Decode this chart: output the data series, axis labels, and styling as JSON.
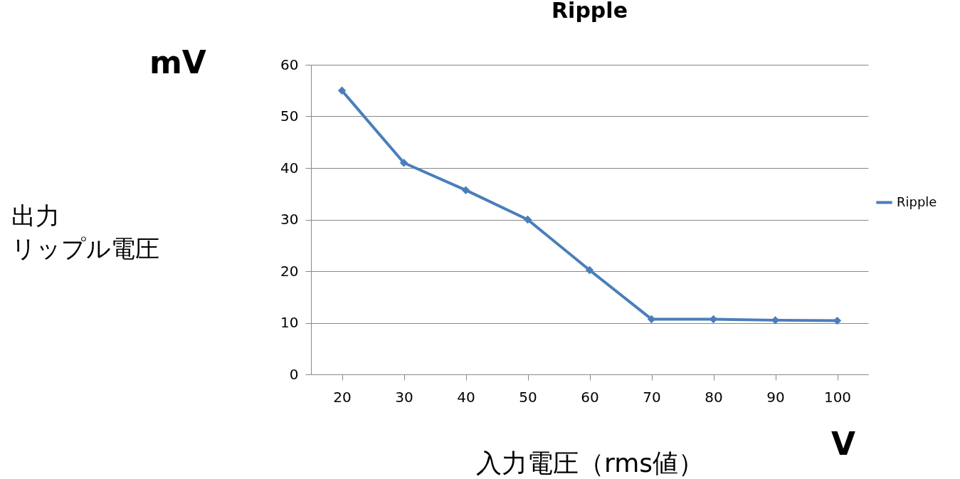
{
  "chart_data": {
    "type": "line",
    "title": "Ripple",
    "xlabel": "入力電圧（rms値）",
    "annotations": [
      "mV",
      "出力リップル電圧",
      "V"
    ],
    "categories": [
      "20",
      "30",
      "40",
      "50",
      "60",
      "70",
      "80",
      "90",
      "100"
    ],
    "series": [
      {
        "name": "Ripple",
        "color": "#4a7ebb",
        "values": [
          55,
          41,
          35.7,
          30,
          20.2,
          10.7,
          10.7,
          10.5,
          10.4
        ]
      }
    ],
    "ylim": [
      0,
      60
    ],
    "yticks": [
      0,
      10,
      20,
      30,
      40,
      50,
      60
    ],
    "grid": "y",
    "legend": "right",
    "marker": "diamond",
    "line_style": "solid"
  }
}
